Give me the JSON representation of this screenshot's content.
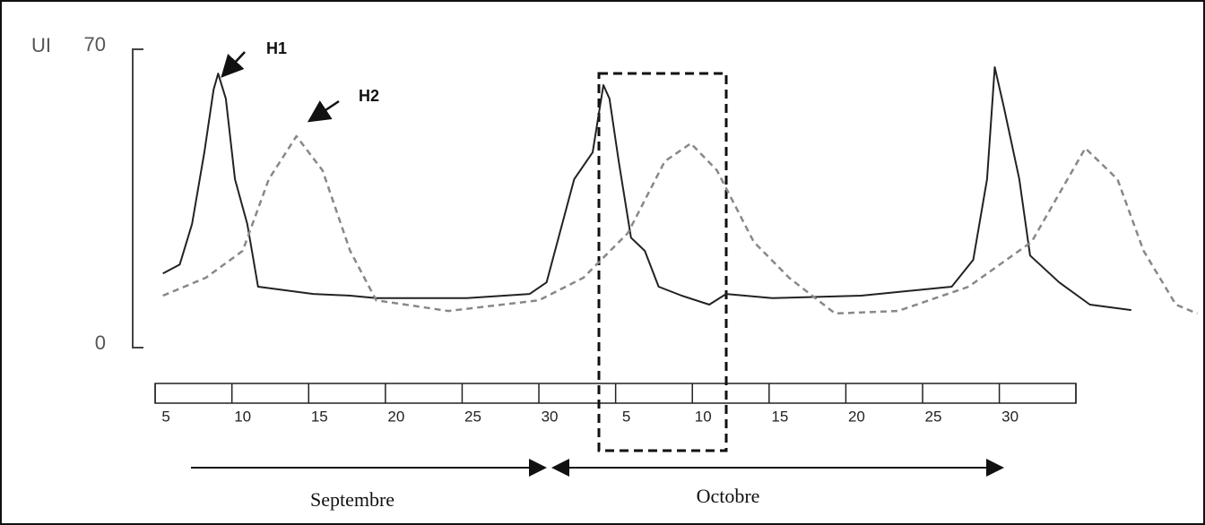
{
  "chart_data": {
    "type": "line",
    "y_label": "UI",
    "xlim": [
      0,
      72.7
    ],
    "ylim": [
      0,
      70
    ],
    "yticks": [
      0,
      70
    ],
    "xticks": [
      5,
      10,
      15,
      20,
      25,
      30,
      {
        "value": 35,
        "label": "5"
      },
      {
        "value": 40,
        "label": "10"
      },
      {
        "value": 45,
        "label": "15"
      },
      {
        "value": 50,
        "label": "20"
      },
      {
        "value": 55,
        "label": "25"
      },
      {
        "value": 60,
        "label": "30"
      }
    ],
    "annotations": [
      "Septembre",
      "Octobre"
    ],
    "series": [
      {
        "name": "H1",
        "color": "#222222",
        "style": "solid",
        "x": [
          4.8,
          5.9,
          6.7,
          7.5,
          8.1,
          8.4,
          8.9,
          9.5,
          10.3,
          10.7,
          11.0,
          14.6,
          17.0,
          18.7,
          21.7,
          24.6,
          28.7,
          29.8,
          31.6,
          32.8,
          33.5,
          33.9,
          34.5,
          35.3,
          36.2,
          37.1,
          38.6,
          40.4,
          41.5,
          44.5,
          50.3,
          56.2,
          57.6,
          58.5,
          59.0,
          59.6,
          60.6,
          61.3,
          63.2,
          65.2,
          67.9
        ],
        "values": [
          17.4,
          19.5,
          29,
          45.8,
          60.5,
          64.3,
          58.4,
          39.5,
          29,
          20.6,
          14.3,
          12.6,
          12.2,
          11.6,
          11.6,
          11.6,
          12.6,
          15.3,
          39.5,
          45.8,
          61.6,
          58.4,
          43.7,
          25.8,
          22.7,
          14.3,
          12.2,
          10.1,
          12.6,
          11.6,
          12.2,
          14.3,
          20.6,
          39.5,
          65.8,
          56.3,
          39.5,
          21.6,
          15.3,
          10.1,
          8.8
        ]
      },
      {
        "name": "H2",
        "color": "#888888",
        "style": "dashed",
        "x": [
          4.8,
          7.6,
          10.0,
          11.7,
          13.5,
          15.2,
          17.0,
          18.7,
          23.4,
          29.3,
          32.2,
          35.1,
          37.5,
          39.2,
          40.9,
          43.3,
          45.6,
          48.6,
          52.7,
          57.3,
          61.4,
          64.9,
          67.0,
          68.7,
          70.8,
          72.2
        ],
        "values": [
          12.2,
          16.4,
          22.7,
          39.5,
          49.6,
          41.6,
          22.7,
          11.1,
          8.6,
          11.1,
          16.4,
          26.9,
          43.7,
          47.9,
          41.6,
          24.8,
          16.4,
          8,
          8.6,
          14.3,
          24.8,
          46.8,
          39.5,
          22.7,
          10.1,
          8
        ]
      }
    ]
  }
}
